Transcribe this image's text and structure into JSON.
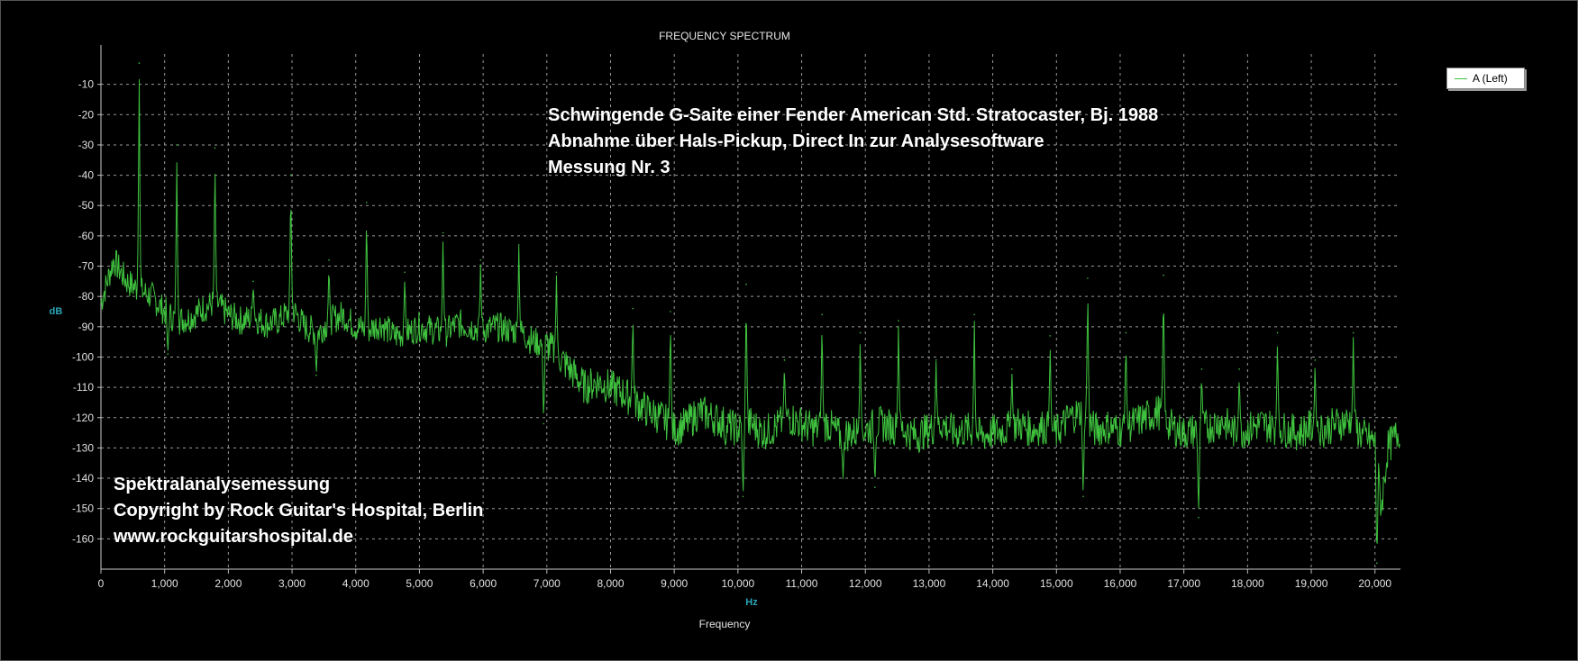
{
  "chart_data": {
    "type": "line",
    "title": "FREQUENCY SPECTRUM",
    "xlabel": "Frequency",
    "x_unit": "Hz",
    "ylabel": "dB",
    "xlim": [
      0,
      20400
    ],
    "ylim": [
      -170,
      0
    ],
    "x_ticks": [
      0,
      1000,
      2000,
      3000,
      4000,
      5000,
      6000,
      7000,
      8000,
      9000,
      10000,
      11000,
      12000,
      13000,
      14000,
      15000,
      16000,
      17000,
      18000,
      19000,
      20000
    ],
    "x_tick_labels": [
      "0",
      "1,000",
      "2,000",
      "3,000",
      "4,000",
      "5,000",
      "6,000",
      "7,000",
      "8,000",
      "9,000",
      "10,000",
      "11,000",
      "12,000",
      "13,000",
      "14,000",
      "15,000",
      "16,000",
      "17,000",
      "18,000",
      "19,000",
      "20,000"
    ],
    "y_ticks": [
      -10,
      -20,
      -30,
      -40,
      -50,
      -60,
      -70,
      -80,
      -90,
      -100,
      -110,
      -120,
      -130,
      -140,
      -150,
      -160
    ],
    "y_tick_labels": [
      "-10",
      "-20",
      "-30",
      "-40",
      "-50",
      "-60",
      "-70",
      "-80",
      "-90",
      "-100",
      "-110",
      "-120",
      "-130",
      "-140",
      "-150",
      "-160"
    ],
    "grid": true,
    "legend_position": "top-right",
    "series": [
      {
        "name": "A (Left)",
        "color": "#3fc33f",
        "x": [
          0,
          200,
          400,
          600,
          800,
          1000,
          1200,
          1400,
          1600,
          1800,
          2000,
          2200,
          2400,
          2600,
          2800,
          3000,
          3200,
          3400,
          3600,
          3800,
          4000,
          4200,
          4400,
          4600,
          4800,
          5000,
          5200,
          5400,
          5600,
          5800,
          6000,
          6200,
          6400,
          6600,
          6800,
          7000,
          7200,
          7400,
          7600,
          7800,
          8000,
          8200,
          8400,
          8600,
          8800,
          9000,
          9200,
          9400,
          9600,
          9800,
          10000,
          10200,
          10400,
          10600,
          10800,
          11000,
          11200,
          11400,
          11600,
          11800,
          12000,
          12200,
          12400,
          12600,
          12800,
          13000,
          13200,
          13400,
          13600,
          13800,
          14000,
          14200,
          14400,
          14600,
          14800,
          15000,
          15200,
          15400,
          15600,
          15800,
          16000,
          16200,
          16400,
          16600,
          16800,
          17000,
          17200,
          17400,
          17600,
          17800,
          18000,
          18200,
          18400,
          18600,
          18800,
          19000,
          19200,
          19400,
          19600,
          19800,
          20000,
          20100,
          20200,
          20400
        ],
        "y": [
          -82,
          -68,
          -75,
          -78,
          -80,
          -85,
          -88,
          -87,
          -84,
          -82,
          -86,
          -88,
          -87,
          -89,
          -88,
          -84,
          -90,
          -92,
          -88,
          -86,
          -90,
          -91,
          -89,
          -93,
          -92,
          -90,
          -91,
          -92,
          -89,
          -90,
          -91,
          -90,
          -91,
          -92,
          -95,
          -96,
          -100,
          -105,
          -110,
          -108,
          -110,
          -112,
          -115,
          -118,
          -120,
          -124,
          -122,
          -118,
          -120,
          -122,
          -124,
          -122,
          -125,
          -123,
          -120,
          -122,
          -124,
          -122,
          -126,
          -125,
          -124,
          -122,
          -123,
          -124,
          -126,
          -124,
          -122,
          -125,
          -124,
          -126,
          -125,
          -124,
          -122,
          -124,
          -123,
          -125,
          -120,
          -118,
          -124,
          -123,
          -124,
          -122,
          -120,
          -118,
          -123,
          -125,
          -124,
          -123,
          -121,
          -125,
          -124,
          -122,
          -123,
          -124,
          -125,
          -123,
          -124,
          -122,
          -121,
          -126,
          -128,
          -150,
          -130,
          -124
        ],
        "peaks": [
          {
            "x": 600,
            "y": -3
          },
          {
            "x": 1190,
            "y": -30
          },
          {
            "x": 1790,
            "y": -31
          },
          {
            "x": 2390,
            "y": -75
          },
          {
            "x": 2980,
            "y": -40
          },
          {
            "x": 3580,
            "y": -68
          },
          {
            "x": 4170,
            "y": -49
          },
          {
            "x": 4770,
            "y": -72
          },
          {
            "x": 5370,
            "y": -59
          },
          {
            "x": 5960,
            "y": -68
          },
          {
            "x": 6560,
            "y": -63
          },
          {
            "x": 7150,
            "y": -72
          },
          {
            "x": 8350,
            "y": -84
          },
          {
            "x": 8940,
            "y": -85
          },
          {
            "x": 10130,
            "y": -76
          },
          {
            "x": 10730,
            "y": -101
          },
          {
            "x": 11320,
            "y": -86
          },
          {
            "x": 11920,
            "y": -92
          },
          {
            "x": 12520,
            "y": -88
          },
          {
            "x": 13110,
            "y": -101
          },
          {
            "x": 13710,
            "y": -86
          },
          {
            "x": 14300,
            "y": -104
          },
          {
            "x": 14900,
            "y": -93
          },
          {
            "x": 15490,
            "y": -74
          },
          {
            "x": 16090,
            "y": -92
          },
          {
            "x": 16680,
            "y": -73
          },
          {
            "x": 17280,
            "y": -104
          },
          {
            "x": 17870,
            "y": -104
          },
          {
            "x": 18470,
            "y": -92
          },
          {
            "x": 19060,
            "y": -101
          },
          {
            "x": 19660,
            "y": -92
          }
        ],
        "dips": [
          {
            "x": 1050,
            "y": -99
          },
          {
            "x": 3380,
            "y": -106
          },
          {
            "x": 6950,
            "y": -122
          },
          {
            "x": 9800,
            "y": -130
          },
          {
            "x": 10080,
            "y": -146
          },
          {
            "x": 11650,
            "y": -140
          },
          {
            "x": 12150,
            "y": -143
          },
          {
            "x": 15420,
            "y": -146
          },
          {
            "x": 17230,
            "y": -153
          },
          {
            "x": 20030,
            "y": -168
          }
        ]
      }
    ],
    "annotations": [
      "Schwingende G-Saite einer Fender American Std. Stratocaster, Bj. 1988",
      "Abnahme über Hals-Pickup, Direct In zur Analysesoftware",
      "Messung Nr. 3",
      "Spektralanalysemessung",
      "Copyright by Rock Guitar's Hospital, Berlin",
      "www.rockguitarshospital.de"
    ]
  }
}
